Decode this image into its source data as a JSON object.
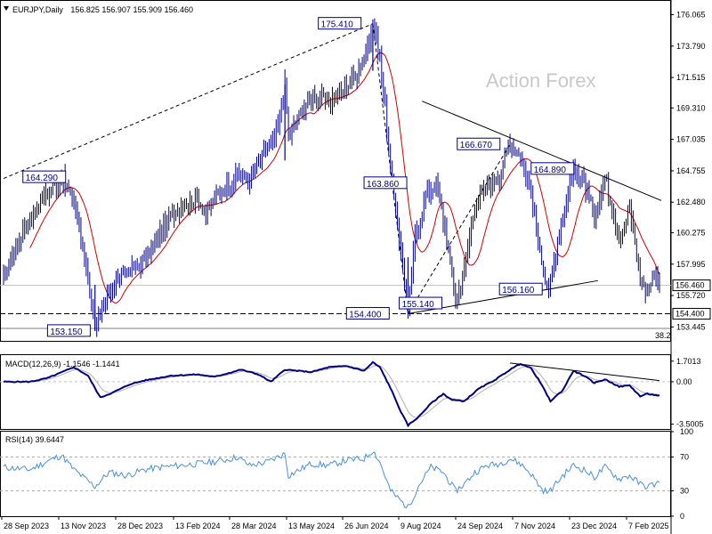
{
  "header": {
    "symbol": "EURJPY,Daily",
    "ohlc": "156.825 156.907 155.909 156.460",
    "macd_label": "MACD(12,26,9) -1.1546 -1.1441",
    "rsi_label": "RSI(14) 39.6447"
  },
  "watermark": "Action Forex",
  "colors": {
    "candle": "#000080",
    "ma": "#d00000",
    "macd_line": "#000080",
    "signal_line": "#b0b0b0",
    "rsi": "#4a8fd8",
    "grid": "#d0d0d0"
  },
  "chart_data": [
    {
      "type": "candlestick",
      "pane": "price",
      "title": "EURJPY,Daily",
      "ylim": [
        152.5,
        177.0
      ],
      "y_ticks": [
        "176.065",
        "173.790",
        "171.515",
        "169.310",
        "167.035",
        "164.755",
        "162.480",
        "160.275",
        "157.995",
        "155.720",
        "153.445"
      ],
      "x_labels": [
        "28 Sep 2023",
        "13 Nov 2023",
        "28 Dec 2023",
        "13 Feb 2024",
        "28 Mar 2024",
        "13 May 2024",
        "26 Jun 2024",
        "9 Aug 2024",
        "24 Sep 2024",
        "7 Nov 2024",
        "23 Dec 2024",
        "7 Feb 2025"
      ],
      "anchors": [
        [
          0,
          157.0
        ],
        [
          10,
          160.0
        ],
        [
          20,
          162.5
        ],
        [
          28,
          163.6
        ],
        [
          33,
          164.29
        ],
        [
          40,
          162.5
        ],
        [
          47,
          158.0
        ],
        [
          52,
          153.15
        ],
        [
          60,
          156.0
        ],
        [
          70,
          157.5
        ],
        [
          80,
          158.2
        ],
        [
          90,
          160.5
        ],
        [
          100,
          162.2
        ],
        [
          110,
          162.8
        ],
        [
          115,
          161.7
        ],
        [
          125,
          163.5
        ],
        [
          133,
          164.5
        ],
        [
          140,
          164.0
        ],
        [
          148,
          166.0
        ],
        [
          155,
          167.3
        ],
        [
          160,
          171.0
        ],
        [
          162,
          167.3
        ],
        [
          175,
          170.2
        ],
        [
          185,
          169.8
        ],
        [
          195,
          170.8
        ],
        [
          200,
          171.8
        ],
        [
          205,
          173.0
        ],
        [
          210,
          175.41
        ],
        [
          214,
          173.2
        ],
        [
          220,
          165.0
        ],
        [
          225,
          160.0
        ],
        [
          230,
          154.4
        ],
        [
          234,
          160.0
        ],
        [
          240,
          163.0
        ],
        [
          246,
          163.86
        ],
        [
          252,
          160.0
        ],
        [
          257,
          155.14
        ],
        [
          262,
          157.5
        ],
        [
          268,
          162.3
        ],
        [
          275,
          163.5
        ],
        [
          282,
          164.5
        ],
        [
          288,
          166.67
        ],
        [
          294,
          166.0
        ],
        [
          300,
          163.0
        ],
        [
          306,
          158.0
        ],
        [
          310,
          156.16
        ],
        [
          318,
          161.0
        ],
        [
          324,
          164.89
        ],
        [
          330,
          164.0
        ],
        [
          336,
          161.5
        ],
        [
          342,
          164.3
        ],
        [
          350,
          160.0
        ],
        [
          356,
          162.0
        ],
        [
          362,
          157.0
        ],
        [
          366,
          155.8
        ],
        [
          370,
          157.5
        ],
        [
          373,
          156.46
        ]
      ],
      "last": 156.46,
      "current_line_level": 156.46,
      "support_level": 154.4,
      "labels": [
        {
          "text": "175.410",
          "value": 175.41
        },
        {
          "text": "164.290",
          "value": 164.29
        },
        {
          "text": "153.150",
          "value": 153.15
        },
        {
          "text": "163.860",
          "value": 163.86
        },
        {
          "text": "154.400",
          "value": 154.4
        },
        {
          "text": "155.140",
          "value": 155.14
        },
        {
          "text": "166.670",
          "value": 166.67
        },
        {
          "text": "164.890",
          "value": 164.89
        },
        {
          "text": "156.160",
          "value": 156.16
        }
      ],
      "price_tags": [
        "156.460",
        "154.400"
      ],
      "fib_label": "38.2",
      "moving_average": "red"
    },
    {
      "type": "line",
      "pane": "macd",
      "title": "MACD(12,26,9) -1.1546 -1.1441",
      "ylim": [
        -3.9,
        2.2
      ],
      "y_ticks": [
        "1.7013",
        "0.00",
        "-3.5005"
      ],
      "series": [
        {
          "name": "MACD",
          "anchors": [
            [
              0,
              0.0
            ],
            [
              15,
              0.0
            ],
            [
              25,
              0.3
            ],
            [
              40,
              1.2
            ],
            [
              48,
              0.5
            ],
            [
              55,
              -1.3
            ],
            [
              62,
              -0.9
            ],
            [
              72,
              -0.2
            ],
            [
              80,
              0.1
            ],
            [
              95,
              0.5
            ],
            [
              110,
              0.6
            ],
            [
              120,
              0.4
            ],
            [
              135,
              1.0
            ],
            [
              145,
              0.6
            ],
            [
              152,
              0.0
            ],
            [
              160,
              1.0
            ],
            [
              175,
              0.8
            ],
            [
              185,
              1.2
            ],
            [
              195,
              1.3
            ],
            [
              205,
              0.9
            ],
            [
              210,
              1.6
            ],
            [
              214,
              1.2
            ],
            [
              220,
              -0.5
            ],
            [
              226,
              -2.5
            ],
            [
              230,
              -3.6
            ],
            [
              236,
              -2.9
            ],
            [
              243,
              -1.8
            ],
            [
              250,
              -1.0
            ],
            [
              255,
              -1.5
            ],
            [
              262,
              -1.6
            ],
            [
              270,
              -0.6
            ],
            [
              280,
              0.2
            ],
            [
              288,
              1.0
            ],
            [
              294,
              1.5
            ],
            [
              300,
              1.1
            ],
            [
              305,
              0.0
            ],
            [
              311,
              -1.6
            ],
            [
              318,
              -0.7
            ],
            [
              324,
              0.9
            ],
            [
              330,
              0.5
            ],
            [
              336,
              -0.1
            ],
            [
              342,
              0.2
            ],
            [
              350,
              -0.4
            ],
            [
              356,
              -0.3
            ],
            [
              362,
              -1.2
            ],
            [
              366,
              -1.0
            ],
            [
              373,
              -1.1546
            ]
          ]
        }
      ]
    },
    {
      "type": "line",
      "pane": "rsi",
      "title": "RSI(14) 39.6447",
      "ylim": [
        0,
        100
      ],
      "y_ticks": [
        "100",
        "70",
        "30",
        "0"
      ],
      "series": [
        {
          "name": "RSI",
          "anchors": [
            [
              0,
              58
            ],
            [
              15,
              55
            ],
            [
              25,
              65
            ],
            [
              33,
              72
            ],
            [
              40,
              55
            ],
            [
              52,
              35
            ],
            [
              60,
              52
            ],
            [
              70,
              48
            ],
            [
              80,
              55
            ],
            [
              90,
              58
            ],
            [
              100,
              60
            ],
            [
              110,
              62
            ],
            [
              125,
              66
            ],
            [
              133,
              70
            ],
            [
              140,
              60
            ],
            [
              150,
              64
            ],
            [
              160,
              74
            ],
            [
              162,
              48
            ],
            [
              175,
              62
            ],
            [
              185,
              60
            ],
            [
              195,
              66
            ],
            [
              205,
              68
            ],
            [
              210,
              78
            ],
            [
              214,
              64
            ],
            [
              220,
              30
            ],
            [
              226,
              18
            ],
            [
              230,
              10
            ],
            [
              236,
              36
            ],
            [
              243,
              58
            ],
            [
              250,
              52
            ],
            [
              257,
              30
            ],
            [
              262,
              38
            ],
            [
              268,
              52
            ],
            [
              275,
              60
            ],
            [
              282,
              62
            ],
            [
              288,
              68
            ],
            [
              294,
              62
            ],
            [
              300,
              50
            ],
            [
              306,
              32
            ],
            [
              310,
              28
            ],
            [
              318,
              48
            ],
            [
              324,
              60
            ],
            [
              330,
              55
            ],
            [
              336,
              46
            ],
            [
              342,
              58
            ],
            [
              350,
              44
            ],
            [
              356,
              48
            ],
            [
              362,
              38
            ],
            [
              366,
              35
            ],
            [
              373,
              39.6447
            ]
          ]
        }
      ]
    }
  ]
}
